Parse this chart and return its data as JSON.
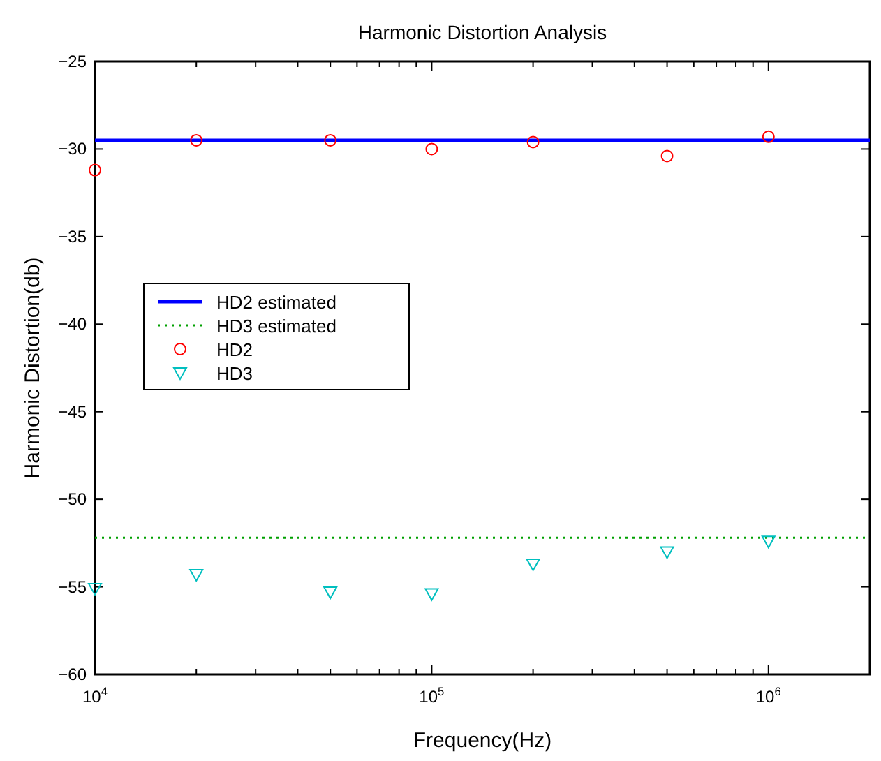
{
  "chart_data": {
    "type": "line",
    "title": "Harmonic Distortion Analysis",
    "xlabel": "Frequency(Hz)",
    "ylabel": "Harmonic Distortion(db)",
    "log": "x",
    "xlim": [
      10000,
      2000000
    ],
    "ylim": [
      -60,
      -25
    ],
    "xticks": [
      {
        "value": 10000,
        "label": "10$^{4}$"
      },
      {
        "value": 20000,
        "label": null
      },
      {
        "value": 30000,
        "label": null
      },
      {
        "value": 40000,
        "label": null
      },
      {
        "value": 50000,
        "label": null
      },
      {
        "value": 60000,
        "label": null
      },
      {
        "value": 70000,
        "label": null
      },
      {
        "value": 80000,
        "label": null
      },
      {
        "value": 90000,
        "label": null
      },
      {
        "value": 100000,
        "label": "10$^{5}$"
      },
      {
        "value": 200000,
        "label": null
      },
      {
        "value": 300000,
        "label": null
      },
      {
        "value": 400000,
        "label": null
      },
      {
        "value": 500000,
        "label": null
      },
      {
        "value": 600000,
        "label": null
      },
      {
        "value": 700000,
        "label": null
      },
      {
        "value": 800000,
        "label": null
      },
      {
        "value": 900000,
        "label": null
      },
      {
        "value": 1000000,
        "label": "10$^{6}$"
      }
    ],
    "yticks": [
      -60,
      -55,
      -50,
      -45,
      -40,
      -35,
      -30,
      -25
    ],
    "grid": false,
    "legend": "left",
    "series": [
      {
        "name": "HD2 estimated",
        "color": "#0000ff",
        "line_style": "solid",
        "x": [
          10000,
          2000000
        ],
        "values": [
          -29.5,
          -29.5
        ]
      },
      {
        "name": "HD3 estimated",
        "color": "#00a000",
        "line_style": "dotted",
        "x": [
          10000,
          2000000
        ],
        "values": [
          -52.2,
          -52.2
        ]
      },
      {
        "name": "HD2",
        "type": "scatter",
        "color": "#ff0000",
        "marker": "circle",
        "x": [
          10000,
          20000,
          50000,
          100000,
          200000,
          500000,
          1000000
        ],
        "values": [
          -31.2,
          -29.5,
          -29.5,
          -30.0,
          -29.6,
          -30.4,
          -29.3
        ]
      },
      {
        "name": "HD3",
        "type": "scatter",
        "color": "#00bfbf",
        "marker": "triangle",
        "x": [
          10000,
          20000,
          50000,
          100000,
          200000,
          500000,
          1000000
        ],
        "values": [
          -55.1,
          -54.3,
          -55.3,
          -55.4,
          -53.7,
          -53.0,
          -52.4
        ]
      }
    ]
  }
}
